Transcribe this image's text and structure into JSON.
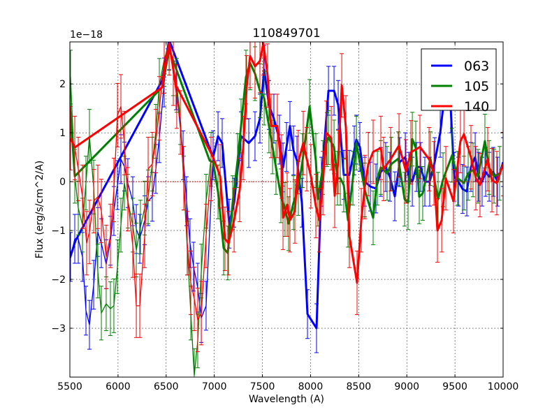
{
  "chart_data": {
    "type": "line",
    "title": "110849701",
    "xlabel": "Wavelength (A)",
    "ylabel": "Flux (erg/s/cm^2/A)",
    "y_offset_label": "1e−18",
    "xlim": [
      5500,
      10000
    ],
    "ylim": [
      -4.0,
      2.86
    ],
    "x_ticks": [
      5500,
      6000,
      6500,
      7000,
      7500,
      8000,
      8500,
      9000,
      9500,
      10000
    ],
    "x_tick_labels": [
      "5500",
      "6000",
      "6500",
      "7000",
      "7500",
      "8000",
      "8500",
      "9000",
      "9500",
      "10000"
    ],
    "y_ticks": [
      -3,
      -2,
      -1,
      0,
      1,
      2
    ],
    "y_tick_labels": [
      "−3",
      "−2",
      "−1",
      "0",
      "1",
      "2"
    ],
    "grid": true,
    "legend_position": "top-right",
    "series": [
      {
        "name": "063",
        "color": "#0000ff",
        "yerr": 0.5,
        "errorbar_points": [
          [
            5507,
            -1.54
          ],
          [
            5551,
            -1.17
          ],
          [
            5587,
            -1.17
          ],
          [
            5631,
            -1.54
          ],
          [
            5667,
            -2.64
          ],
          [
            5703,
            -2.93
          ],
          [
            5747,
            -2.11
          ],
          [
            5790,
            -1.03
          ],
          [
            5827,
            -1.26
          ],
          [
            5877,
            -1.69
          ],
          [
            5921,
            -1.21
          ],
          [
            5957,
            -0.6
          ],
          [
            5994,
            -0.07
          ],
          [
            6030,
            0.46
          ],
          [
            6066,
            0.31
          ],
          [
            6102,
            -0.03
          ],
          [
            6153,
            -0.4
          ],
          [
            6190,
            -0.97
          ],
          [
            6226,
            -1.17
          ],
          [
            6277,
            -0.79
          ],
          [
            6313,
            -0.4
          ],
          [
            6356,
            -0.31
          ],
          [
            6393,
            0.26
          ],
          [
            6429,
            0.89
          ],
          [
            6480,
            2.03
          ],
          [
            6531,
            2.79
          ],
          [
            6603,
            1.97
          ],
          [
            6676,
            0.54
          ],
          [
            6712,
            -0.4
          ],
          [
            6748,
            -1.26
          ],
          [
            6785,
            -1.74
          ],
          [
            6828,
            -2.17
          ],
          [
            6865,
            -2.79
          ],
          [
            6915,
            -2.54
          ],
          [
            6988,
            0.54
          ]
        ],
        "line": [
          [
            5500,
            -1.57
          ],
          [
            5558,
            -1.21
          ],
          [
            6458,
            2.07
          ],
          [
            6531,
            2.9
          ],
          [
            6988,
            0.5
          ],
          [
            7039,
            0.93
          ],
          [
            7082,
            0.79
          ],
          [
            7155,
            -0.86
          ],
          [
            7206,
            -0.43
          ],
          [
            7278,
            0.93
          ],
          [
            7358,
            0.79
          ],
          [
            7423,
            0.93
          ],
          [
            7474,
            1.29
          ],
          [
            7518,
            2.29
          ],
          [
            7568,
            1.57
          ],
          [
            7619,
            1.29
          ],
          [
            7677,
            0.86
          ],
          [
            7714,
            0.29
          ],
          [
            7750,
            0.71
          ],
          [
            7786,
            1.14
          ],
          [
            7823,
            0.64
          ],
          [
            7859,
            0.43
          ],
          [
            7910,
            -0.43
          ],
          [
            7968,
            -2.71
          ],
          [
            8062,
            -3.0
          ],
          [
            8113,
            0
          ],
          [
            8186,
            1.86
          ],
          [
            8244,
            1.86
          ],
          [
            8287,
            1.57
          ],
          [
            8345,
            0.14
          ],
          [
            8403,
            0.14
          ],
          [
            8454,
            0.64
          ],
          [
            8476,
            0.86
          ],
          [
            8512,
            0.71
          ],
          [
            8563,
            0
          ],
          [
            8621,
            -0.1
          ],
          [
            8679,
            -0.14
          ],
          [
            8730,
            0.2
          ],
          [
            8780,
            0.3
          ],
          [
            8824,
            0.1
          ],
          [
            8875,
            -0.3
          ],
          [
            8926,
            0.4
          ],
          [
            8984,
            0.5
          ],
          [
            9020,
            0.1
          ],
          [
            9057,
            0
          ],
          [
            9100,
            0.3
          ],
          [
            9144,
            0.3
          ],
          [
            9187,
            0
          ],
          [
            9238,
            0
          ],
          [
            9289,
            0.4
          ],
          [
            9347,
            1.0
          ],
          [
            9405,
            2.0
          ],
          [
            9456,
            1.5
          ],
          [
            9492,
            0.1
          ],
          [
            9536,
            0
          ],
          [
            9579,
            -0.15
          ],
          [
            9623,
            -0.2
          ],
          [
            9666,
            0.3
          ],
          [
            9710,
            0.5
          ],
          [
            9746,
            0.1
          ],
          [
            9782,
            0
          ],
          [
            9819,
            0.2
          ],
          [
            9855,
            0.1
          ],
          [
            9898,
            0.2
          ],
          [
            9942,
            0
          ],
          [
            10000,
            0.4
          ]
        ]
      },
      {
        "name": "105",
        "color": "#008000",
        "yerr": 0.55,
        "errorbar_points": [
          [
            5507,
            2.14
          ],
          [
            5551,
            0.11
          ],
          [
            5587,
            -0.54
          ],
          [
            5631,
            -0.89
          ],
          [
            5667,
            -0.03
          ],
          [
            5703,
            0.93
          ],
          [
            5747,
            -0.11
          ],
          [
            5790,
            -1.83
          ],
          [
            5827,
            -2.69
          ],
          [
            5877,
            -2.5
          ],
          [
            5921,
            -2.6
          ],
          [
            5957,
            -2.54
          ],
          [
            5994,
            -1.74
          ],
          [
            6030,
            -0.89
          ],
          [
            6066,
            -0.03
          ],
          [
            6102,
            -0.4
          ],
          [
            6153,
            -0.89
          ],
          [
            6190,
            -1.4
          ],
          [
            6233,
            -0.93
          ],
          [
            6277,
            -0.54
          ],
          [
            6313,
            -0.31
          ],
          [
            6356,
            0.36
          ],
          [
            6393,
            1.03
          ],
          [
            6429,
            1.97
          ],
          [
            6480,
            2.5
          ],
          [
            6531,
            2.83
          ],
          [
            6574,
            2.31
          ],
          [
            6610,
            1.97
          ],
          [
            6647,
            1.31
          ],
          [
            6683,
            -0.03
          ],
          [
            6719,
            -1.36
          ],
          [
            6756,
            -2.69
          ],
          [
            6792,
            -3.97
          ],
          [
            6828,
            -3.26
          ],
          [
            6865,
            -1.83
          ],
          [
            6915,
            -0.4
          ],
          [
            6966,
            0.46
          ]
        ],
        "line": [
          [
            5500,
            1.6
          ],
          [
            5551,
            0.11
          ],
          [
            6458,
            1.93
          ],
          [
            6531,
            2.7
          ],
          [
            6952,
            0.43
          ],
          [
            6988,
            0.4
          ],
          [
            7039,
            -0.21
          ],
          [
            7097,
            -1.36
          ],
          [
            7140,
            -1.46
          ],
          [
            7191,
            -0.43
          ],
          [
            7242,
            0.43
          ],
          [
            7278,
            1.14
          ],
          [
            7329,
            2.14
          ],
          [
            7372,
            2.43
          ],
          [
            7423,
            2.21
          ],
          [
            7474,
            1.86
          ],
          [
            7518,
            1.71
          ],
          [
            7568,
            1.14
          ],
          [
            7605,
            0.71
          ],
          [
            7641,
            0.29
          ],
          [
            7692,
            -0.29
          ],
          [
            7735,
            -0.57
          ],
          [
            7772,
            -0.86
          ],
          [
            7823,
            -0.43
          ],
          [
            7873,
            -0.14
          ],
          [
            7917,
            0.43
          ],
          [
            7990,
            1.54
          ],
          [
            8055,
            0.43
          ],
          [
            8076,
            -0.36
          ],
          [
            8128,
            0.29
          ],
          [
            8171,
            0.86
          ],
          [
            8186,
            0.9
          ],
          [
            8244,
            0.71
          ],
          [
            8280,
            0.07
          ],
          [
            8309,
            0.07
          ],
          [
            8345,
            -0.07
          ],
          [
            8389,
            -0.79
          ],
          [
            8440,
            0.07
          ],
          [
            8476,
            0.79
          ],
          [
            8563,
            -0.17
          ],
          [
            8650,
            -0.74
          ],
          [
            8694,
            0.07
          ],
          [
            8730,
            0.29
          ],
          [
            8795,
            0.17
          ],
          [
            8839,
            0.36
          ],
          [
            8911,
            0.47
          ],
          [
            8977,
            -0.36
          ],
          [
            9013,
            -0.43
          ],
          [
            9057,
            0.87
          ],
          [
            9093,
            0.69
          ],
          [
            9129,
            -0.31
          ],
          [
            9165,
            -0.24
          ],
          [
            9245,
            0.47
          ],
          [
            9325,
            -0.36
          ],
          [
            9376,
            0.04
          ],
          [
            9470,
            0.54
          ],
          [
            9528,
            0.07
          ],
          [
            9594,
            -0.03
          ],
          [
            9637,
            0.17
          ],
          [
            9688,
            0.24
          ],
          [
            9739,
            0.11
          ],
          [
            9811,
            0.83
          ],
          [
            9855,
            0.29
          ],
          [
            9906,
            0.11
          ],
          [
            9964,
            0.17
          ]
        ]
      },
      {
        "name": "140",
        "color": "#ff0000",
        "yerr": 0.65,
        "errorbar_points": [
          [
            5507,
            0.89
          ],
          [
            5551,
            0.69
          ],
          [
            5587,
            0.26
          ],
          [
            5631,
            -0.31
          ],
          [
            5674,
            -1.26
          ],
          [
            5703,
            -1.03
          ],
          [
            5747,
            -0.4
          ],
          [
            5790,
            -0.31
          ],
          [
            5827,
            -0.6
          ],
          [
            5877,
            -1.54
          ],
          [
            5921,
            -1.11
          ],
          [
            5957,
            -0.17
          ],
          [
            5994,
            1.36
          ],
          [
            6030,
            1.54
          ],
          [
            6066,
            0.79
          ],
          [
            6102,
            -0.36
          ],
          [
            6153,
            -1.31
          ],
          [
            6190,
            -2.54
          ],
          [
            6226,
            -2.54
          ],
          [
            6277,
            -1.11
          ],
          [
            6313,
            0.26
          ],
          [
            6356,
            0.36
          ],
          [
            6393,
            0.83
          ],
          [
            6429,
            1.5
          ],
          [
            6480,
            2.46
          ],
          [
            6531,
            2.83
          ],
          [
            6574,
            2.21
          ],
          [
            6610,
            1.74
          ],
          [
            6647,
            1.21
          ],
          [
            6683,
            0.07
          ],
          [
            6719,
            -1.26
          ],
          [
            6756,
            -2.07
          ],
          [
            6792,
            -2.4
          ],
          [
            6828,
            -2.83
          ],
          [
            6865,
            -2.69
          ],
          [
            6915,
            -1.11
          ],
          [
            6966,
            0.26
          ]
        ],
        "line": [
          [
            5507,
            0.89
          ],
          [
            5551,
            0.7
          ],
          [
            6458,
            1.93
          ],
          [
            6531,
            2.83
          ],
          [
            6603,
            1.97
          ],
          [
            6988,
            0.5
          ],
          [
            7061,
            0.11
          ],
          [
            7111,
            -1.17
          ],
          [
            7148,
            -1.26
          ],
          [
            7206,
            -0.79
          ],
          [
            7264,
            -0.17
          ],
          [
            7300,
            0.69
          ],
          [
            7336,
            1.93
          ],
          [
            7372,
            2.57
          ],
          [
            7423,
            2.36
          ],
          [
            7474,
            2.47
          ],
          [
            7510,
            2.83
          ],
          [
            7554,
            2.17
          ],
          [
            7590,
            1.14
          ],
          [
            7655,
            1.14
          ],
          [
            7699,
            0.31
          ],
          [
            7714,
            -0.74
          ],
          [
            7757,
            -0.47
          ],
          [
            7786,
            -0.79
          ],
          [
            7837,
            -0.61
          ],
          [
            7873,
            0.4
          ],
          [
            7924,
            0.79
          ],
          [
            7961,
            0.46
          ],
          [
            8004,
            0.11
          ],
          [
            8055,
            -0.5
          ],
          [
            8091,
            -0.79
          ],
          [
            8128,
            -0.03
          ],
          [
            8164,
            1.0
          ],
          [
            8215,
            0.89
          ],
          [
            8251,
            -0.29
          ],
          [
            8287,
            0.4
          ],
          [
            8324,
            1.97
          ],
          [
            8367,
            1.11
          ],
          [
            8403,
            -1.11
          ],
          [
            8483,
            -2.07
          ],
          [
            8527,
            -0.79
          ],
          [
            8563,
            -0.11
          ],
          [
            8600,
            0.36
          ],
          [
            8650,
            0.61
          ],
          [
            8730,
            0.69
          ],
          [
            8759,
            0.26
          ],
          [
            8832,
            0.46
          ],
          [
            8919,
            0.74
          ],
          [
            8991,
            0.21
          ],
          [
            9042,
            0.6
          ],
          [
            9136,
            0.71
          ],
          [
            9231,
            0.46
          ],
          [
            9282,
            0.17
          ],
          [
            9318,
            -1.0
          ],
          [
            9362,
            -0.79
          ],
          [
            9405,
            0.07
          ],
          [
            9485,
            -0.4
          ],
          [
            9557,
            0.83
          ],
          [
            9594,
            0.97
          ],
          [
            9666,
            0.5
          ],
          [
            9717,
            0.07
          ],
          [
            9760,
            -0.07
          ],
          [
            9840,
            0.46
          ],
          [
            9884,
            0.03
          ],
          [
            9935,
            -0.03
          ],
          [
            10000,
            0.36
          ]
        ]
      }
    ]
  }
}
